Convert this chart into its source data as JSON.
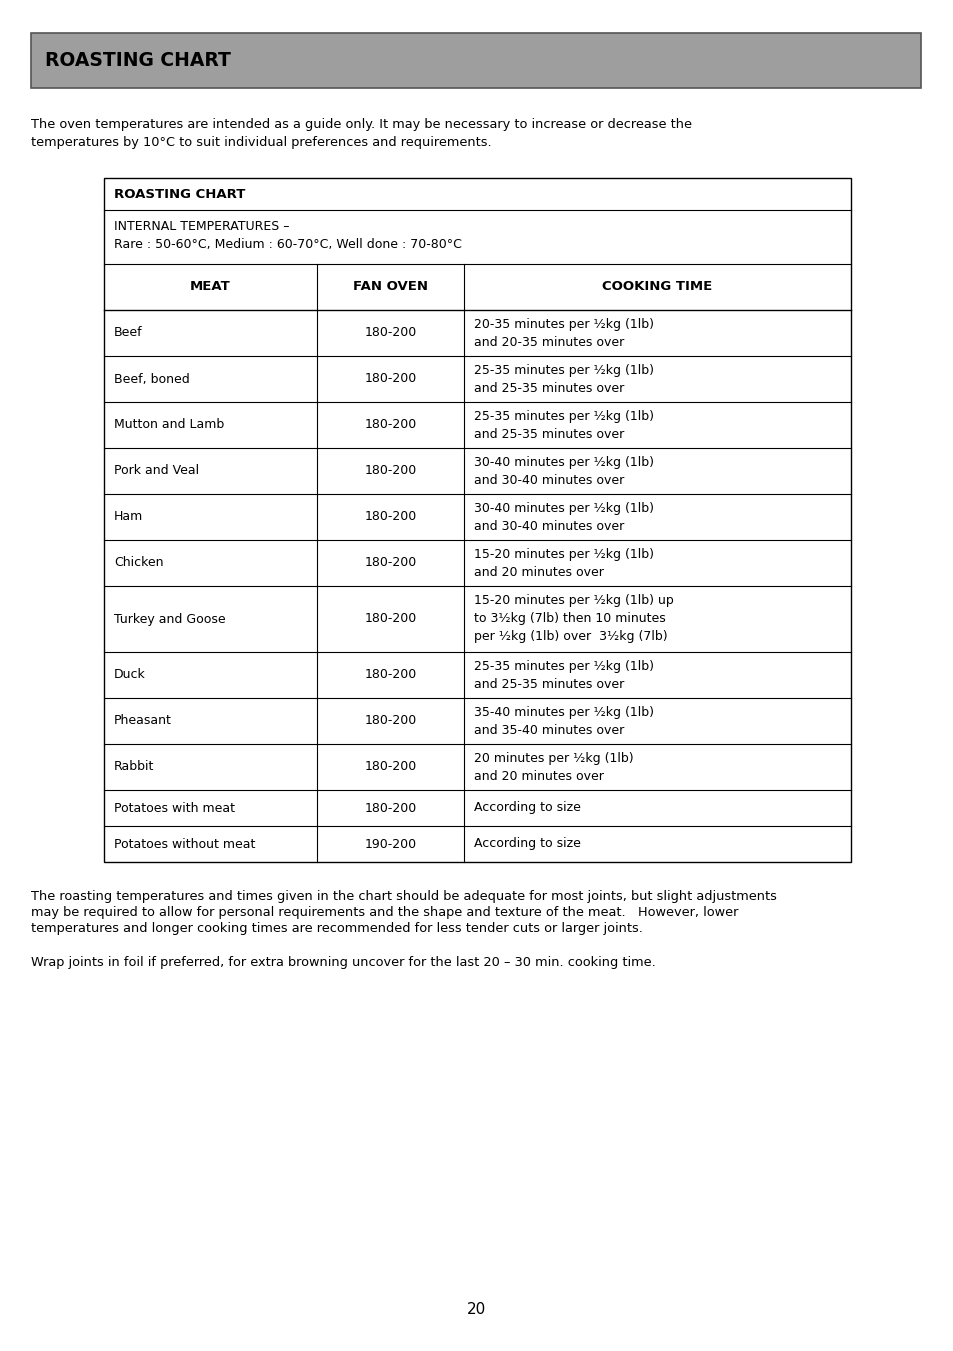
{
  "page_title": "ROASTING CHART",
  "header_bg": "#9e9e9e",
  "intro_text_line1": "The oven temperatures are intended as a guide only. It may be necessary to increase or decrease the",
  "intro_text_line2": "temperatures by 10°C to suit individual preferences and requirements.",
  "table_title": "ROASTING CHART",
  "internal_temp_line1": "INTERNAL TEMPERATURES –",
  "internal_temp_line2": "Rare : 50-60°C, Medium : 60-70°C, Well done : 70-80°C",
  "col_headers": [
    "MEAT",
    "FAN OVEN",
    "COOKING TIME"
  ],
  "rows": [
    [
      "Beef",
      "180-200",
      "20-35 minutes per ½kg (1lb)\nand 20-35 minutes over"
    ],
    [
      "Beef, boned",
      "180-200",
      "25-35 minutes per ½kg (1lb)\nand 25-35 minutes over"
    ],
    [
      "Mutton and Lamb",
      "180-200",
      "25-35 minutes per ½kg (1lb)\nand 25-35 minutes over"
    ],
    [
      "Pork and Veal",
      "180-200",
      "30-40 minutes per ½kg (1lb)\nand 30-40 minutes over"
    ],
    [
      "Ham",
      "180-200",
      "30-40 minutes per ½kg (1lb)\nand 30-40 minutes over"
    ],
    [
      "Chicken",
      "180-200",
      "15-20 minutes per ½kg (1lb)\nand 20 minutes over"
    ],
    [
      "Turkey and Goose",
      "180-200",
      "15-20 minutes per ½kg (1lb) up\nto 3½kg (7lb) then 10 minutes\nper ½kg (1lb) over  3½kg (7lb)"
    ],
    [
      "Duck",
      "180-200",
      "25-35 minutes per ½kg (1lb)\nand 25-35 minutes over"
    ],
    [
      "Pheasant",
      "180-200",
      "35-40 minutes per ½kg (1lb)\nand 35-40 minutes over"
    ],
    [
      "Rabbit",
      "180-200",
      "20 minutes per ½kg (1lb)\nand 20 minutes over"
    ],
    [
      "Potatoes with meat",
      "180-200",
      "According to size"
    ],
    [
      "Potatoes without meat",
      "190-200",
      "According to size"
    ]
  ],
  "footer_text1_line1": "The roasting temperatures and times given in the chart should be adequate for most joints, but slight adjustments",
  "footer_text1_line2": "may be required to allow for personal requirements and the shape and texture of the meat.   However, lower",
  "footer_text1_line3": "temperatures and longer cooking times are recommended for less tender cuts or larger joints.",
  "footer_text2": "Wrap joints in foil if preferred, for extra browning uncover for the last 20 – 30 min. cooking time.",
  "page_number": "20",
  "bg_color": "#ffffff",
  "text_color": "#000000"
}
